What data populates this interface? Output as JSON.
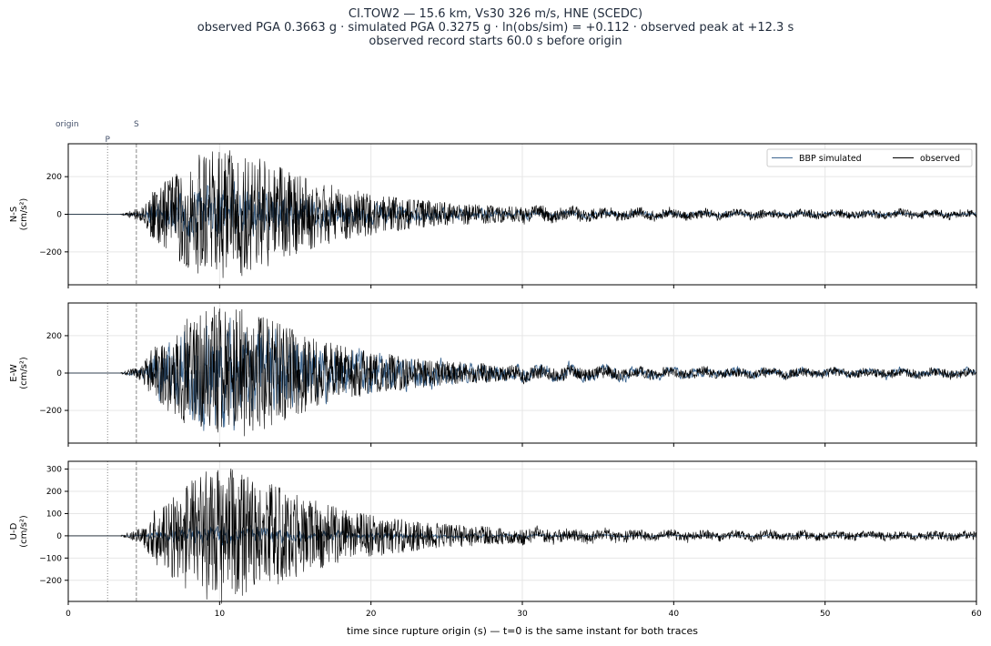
{
  "title": {
    "line1": "CI.TOW2  —  15.6 km, Vs30 326 m/s, HNE (SCEDC)",
    "line2": "observed PGA 0.3663 g   ·   simulated PGA 0.3275 g   ·   ln(obs/sim) = +0.112   ·   observed peak at +12.3 s",
    "line3": "observed record starts 60.0 s before origin"
  },
  "colors": {
    "simulated": "#3d6690",
    "observed": "#000000",
    "grid": "#e6e6e6",
    "marker": "#888888"
  },
  "chart_data": {
    "type": "line",
    "xlabel": "time since rupture origin (s)   —   t=0 is the same instant for both traces",
    "xlim": [
      0,
      60
    ],
    "x_ticks": [
      0,
      10,
      20,
      30,
      40,
      50,
      60
    ],
    "legend": {
      "placement": "top-right",
      "entries": [
        "BBP simulated",
        "observed"
      ]
    },
    "grid": true,
    "markers": [
      {
        "label": "origin",
        "t": 0
      },
      {
        "label": "P",
        "t": 2.6
      },
      {
        "label": "S",
        "t": 4.5
      }
    ],
    "panels": [
      {
        "ylabel": "N-S\n(cm/s²)",
        "ylim": [
          -375,
          375
        ],
        "y_ticks": [
          -200,
          0,
          200
        ],
        "obs_peak": 340,
        "sim_peak": 175,
        "series": [
          {
            "name": "BBP simulated",
            "peak": 175
          },
          {
            "name": "observed",
            "peak": 340
          }
        ]
      },
      {
        "ylabel": "E-W\n(cm/s²)",
        "ylim": [
          -375,
          375
        ],
        "y_ticks": [
          -200,
          0,
          200
        ],
        "obs_peak": 355,
        "sim_peak": 310,
        "series": [
          {
            "name": "BBP simulated",
            "peak": 310
          },
          {
            "name": "observed",
            "peak": 355
          }
        ]
      },
      {
        "ylabel": "U-D\n(cm/s²)",
        "ylim": [
          -295,
          335
        ],
        "y_ticks": [
          -200,
          -100,
          0,
          100,
          200,
          300
        ],
        "obs_peak": 305,
        "sim_peak": 45,
        "series": [
          {
            "name": "BBP simulated",
            "peak": 45
          },
          {
            "name": "observed",
            "peak": 305
          }
        ]
      }
    ]
  }
}
